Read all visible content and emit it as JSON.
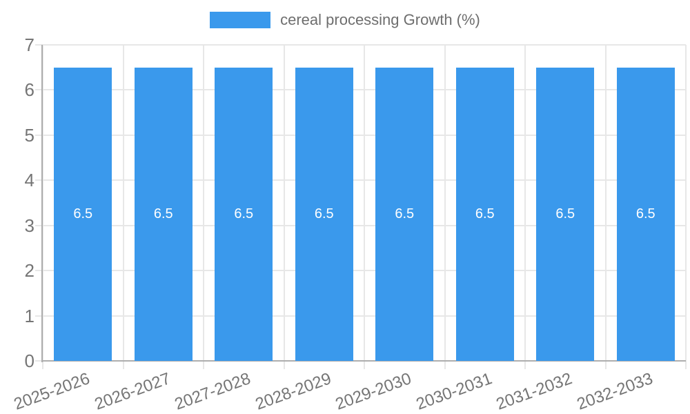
{
  "chart_data": {
    "type": "bar",
    "series_name": "cereal processing Growth (%)",
    "categories": [
      "2025-2026",
      "2026-2027",
      "2027-2028",
      "2028-2029",
      "2029-2030",
      "2030-2031",
      "2031-2032",
      "2032-2033"
    ],
    "values": [
      6.5,
      6.5,
      6.5,
      6.5,
      6.5,
      6.5,
      6.5,
      6.5
    ],
    "bar_labels": [
      "6.5",
      "6.5",
      "6.5",
      "6.5",
      "6.5",
      "6.5",
      "6.5",
      "6.5"
    ],
    "y_ticks": [
      "0",
      "1",
      "2",
      "3",
      "4",
      "5",
      "6",
      "7"
    ],
    "ylim": [
      0,
      7
    ],
    "grid": true,
    "legend_position": "top",
    "colors": {
      "bar_fill": "#3A99EC",
      "bar_value_label": "#FFFFFF",
      "tick_text": "#757575",
      "legend_text": "#6E6E6E",
      "gridline": "#E7E7E7",
      "axis_line": "#ADADAD",
      "background": "#FFFFFF"
    }
  }
}
